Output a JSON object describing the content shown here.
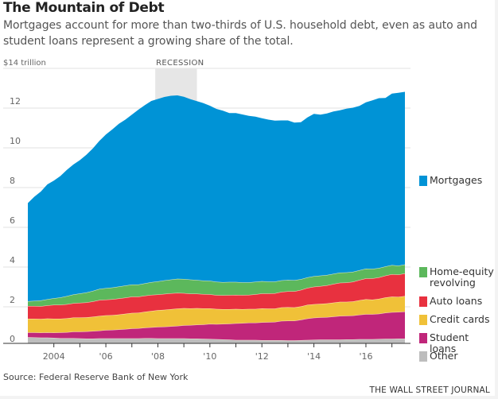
{
  "header": {
    "title": "The Mountain of Debt",
    "subtitle": "Mortgages account for more than two-thirds of U.S. household debt, even as auto and student loans represent a growing share of the total."
  },
  "footer": {
    "source": "Source: Federal Reserve Bank of New York",
    "brand": "THE WALL STREET JOURNAL"
  },
  "chart_data": {
    "type": "area",
    "stacked": true,
    "title": "The Mountain of Debt",
    "ylabel": "$14 trillion",
    "unit_label": "$14 trillion",
    "ylim": [
      0,
      14
    ],
    "yticks": [
      0,
      2,
      4,
      6,
      8,
      10,
      12
    ],
    "ytick_labels": [
      "0",
      "2",
      "4",
      "6",
      "8",
      "10",
      "12"
    ],
    "xlim": [
      2003.0,
      2017.5
    ],
    "xticks": [
      2004,
      2006,
      2008,
      2010,
      2012,
      2014,
      2016
    ],
    "xtick_labels": [
      "2004",
      "'06",
      "'08",
      "'10",
      "'12",
      "'14",
      "'16"
    ],
    "minor_xticks": [
      2005,
      2007,
      2009,
      2011,
      2013,
      2015,
      2017
    ],
    "grid": true,
    "legend_position": "right",
    "annotations": [
      {
        "type": "shaded-band",
        "label": "RECESSION",
        "x_start": 2007.9,
        "x_end": 2009.5
      }
    ],
    "x": [
      2003.0,
      2003.25,
      2003.5,
      2003.75,
      2004.0,
      2004.25,
      2004.5,
      2004.75,
      2005.0,
      2005.25,
      2005.5,
      2005.75,
      2006.0,
      2006.25,
      2006.5,
      2006.75,
      2007.0,
      2007.25,
      2007.5,
      2007.75,
      2008.0,
      2008.25,
      2008.5,
      2008.75,
      2009.0,
      2009.25,
      2009.5,
      2009.75,
      2010.0,
      2010.25,
      2010.5,
      2010.75,
      2011.0,
      2011.25,
      2011.5,
      2011.75,
      2012.0,
      2012.25,
      2012.5,
      2012.75,
      2013.0,
      2013.25,
      2013.5,
      2013.75,
      2014.0,
      2014.25,
      2014.5,
      2014.75,
      2015.0,
      2015.25,
      2015.5,
      2015.75,
      2016.0,
      2016.25,
      2016.5,
      2016.75,
      2017.0,
      2017.25,
      2017.5
    ],
    "series": [
      {
        "name": "Other",
        "color": "#bdbdbd",
        "values": [
          0.47,
          0.46,
          0.45,
          0.45,
          0.44,
          0.42,
          0.42,
          0.42,
          0.41,
          0.4,
          0.4,
          0.41,
          0.41,
          0.41,
          0.41,
          0.41,
          0.41,
          0.41,
          0.42,
          0.42,
          0.41,
          0.41,
          0.41,
          0.41,
          0.41,
          0.4,
          0.4,
          0.39,
          0.38,
          0.37,
          0.36,
          0.35,
          0.33,
          0.33,
          0.33,
          0.33,
          0.32,
          0.32,
          0.32,
          0.32,
          0.31,
          0.31,
          0.32,
          0.33,
          0.34,
          0.35,
          0.35,
          0.35,
          0.35,
          0.36,
          0.36,
          0.37,
          0.37,
          0.37,
          0.38,
          0.39,
          0.39,
          0.4,
          0.4
        ]
      },
      {
        "name": "Student loans",
        "color": "#c0267a",
        "values": [
          0.24,
          0.25,
          0.25,
          0.26,
          0.26,
          0.29,
          0.3,
          0.33,
          0.34,
          0.36,
          0.38,
          0.39,
          0.42,
          0.43,
          0.45,
          0.47,
          0.5,
          0.51,
          0.53,
          0.55,
          0.58,
          0.59,
          0.61,
          0.63,
          0.66,
          0.68,
          0.7,
          0.72,
          0.76,
          0.76,
          0.78,
          0.8,
          0.84,
          0.85,
          0.87,
          0.87,
          0.9,
          0.91,
          0.92,
          0.97,
          0.99,
          0.99,
          1.03,
          1.08,
          1.11,
          1.12,
          1.13,
          1.16,
          1.19,
          1.19,
          1.2,
          1.23,
          1.26,
          1.26,
          1.27,
          1.31,
          1.34,
          1.34,
          1.36
        ]
      },
      {
        "name": "Credit cards",
        "color": "#f0c138",
        "values": [
          0.69,
          0.69,
          0.69,
          0.7,
          0.7,
          0.69,
          0.7,
          0.71,
          0.71,
          0.71,
          0.72,
          0.74,
          0.74,
          0.74,
          0.75,
          0.77,
          0.78,
          0.78,
          0.8,
          0.82,
          0.84,
          0.85,
          0.86,
          0.87,
          0.86,
          0.84,
          0.83,
          0.81,
          0.78,
          0.76,
          0.74,
          0.73,
          0.72,
          0.7,
          0.69,
          0.69,
          0.7,
          0.68,
          0.67,
          0.68,
          0.68,
          0.67,
          0.67,
          0.69,
          0.68,
          0.68,
          0.69,
          0.7,
          0.71,
          0.7,
          0.71,
          0.73,
          0.75,
          0.73,
          0.75,
          0.77,
          0.78,
          0.76,
          0.78
        ]
      },
      {
        "name": "Auto loans",
        "color": "#e8313f",
        "values": [
          0.64,
          0.64,
          0.64,
          0.66,
          0.7,
          0.7,
          0.71,
          0.72,
          0.74,
          0.75,
          0.77,
          0.8,
          0.79,
          0.8,
          0.81,
          0.81,
          0.82,
          0.81,
          0.81,
          0.81,
          0.79,
          0.8,
          0.8,
          0.79,
          0.76,
          0.74,
          0.73,
          0.72,
          0.71,
          0.7,
          0.7,
          0.71,
          0.71,
          0.71,
          0.71,
          0.74,
          0.75,
          0.76,
          0.77,
          0.78,
          0.8,
          0.81,
          0.83,
          0.85,
          0.88,
          0.89,
          0.91,
          0.94,
          0.96,
          0.97,
          0.99,
          1.02,
          1.05,
          1.07,
          1.08,
          1.1,
          1.13,
          1.12,
          1.14
        ]
      },
      {
        "name": "Home-equity revolving",
        "color": "#5cb85c",
        "values": [
          0.24,
          0.26,
          0.29,
          0.31,
          0.33,
          0.37,
          0.41,
          0.44,
          0.47,
          0.5,
          0.53,
          0.56,
          0.58,
          0.59,
          0.6,
          0.61,
          0.61,
          0.61,
          0.62,
          0.64,
          0.66,
          0.68,
          0.69,
          0.71,
          0.71,
          0.71,
          0.69,
          0.68,
          0.68,
          0.67,
          0.66,
          0.66,
          0.65,
          0.64,
          0.63,
          0.63,
          0.62,
          0.6,
          0.59,
          0.58,
          0.57,
          0.56,
          0.54,
          0.53,
          0.53,
          0.53,
          0.52,
          0.51,
          0.51,
          0.51,
          0.5,
          0.49,
          0.49,
          0.48,
          0.47,
          0.46,
          0.46,
          0.45,
          0.45
        ]
      },
      {
        "name": "Mortgages",
        "color": "#0093d6",
        "values": [
          4.94,
          5.24,
          5.48,
          5.78,
          5.92,
          6.11,
          6.35,
          6.54,
          6.71,
          6.93,
          7.17,
          7.45,
          7.73,
          7.96,
          8.19,
          8.35,
          8.55,
          8.8,
          8.97,
          9.12,
          9.18,
          9.23,
          9.25,
          9.23,
          9.17,
          9.08,
          9.0,
          8.93,
          8.81,
          8.7,
          8.63,
          8.5,
          8.5,
          8.45,
          8.38,
          8.31,
          8.2,
          8.15,
          8.1,
          8.05,
          8.03,
          7.93,
          7.9,
          8.05,
          8.17,
          8.1,
          8.13,
          8.17,
          8.17,
          8.24,
          8.26,
          8.27,
          8.37,
          8.48,
          8.55,
          8.48,
          8.63,
          8.7,
          8.69
        ]
      }
    ],
    "legend": [
      {
        "name": "Mortgages",
        "color": "#0093d6"
      },
      {
        "name": "Home-equity revolving",
        "color": "#5cb85c"
      },
      {
        "name": "Auto loans",
        "color": "#e8313f"
      },
      {
        "name": "Credit cards",
        "color": "#f0c138"
      },
      {
        "name": "Student loans",
        "color": "#c0267a"
      },
      {
        "name": "Other",
        "color": "#bdbdbd"
      }
    ]
  }
}
